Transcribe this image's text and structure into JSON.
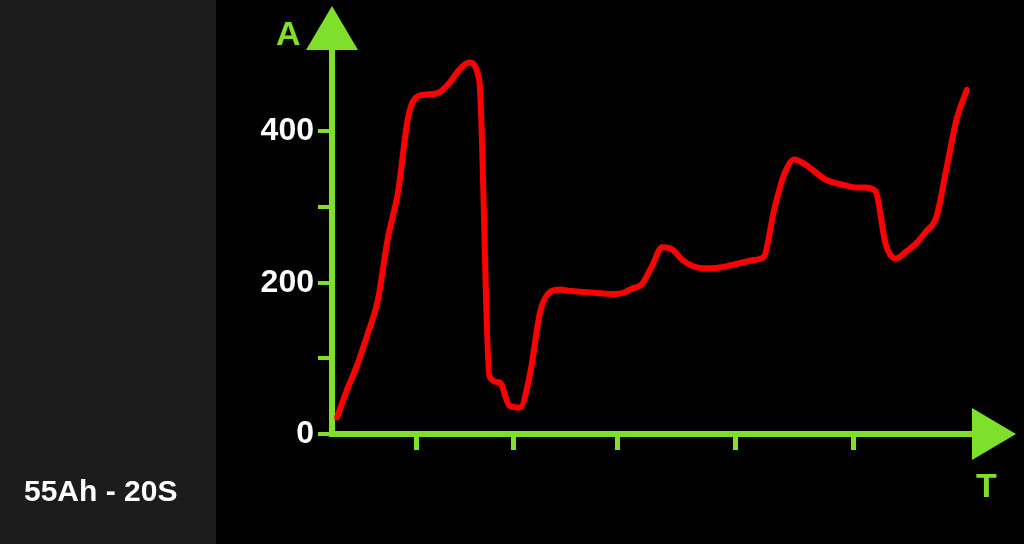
{
  "chart_data": {
    "type": "line",
    "xlabel": "T",
    "ylabel": "A",
    "annotations": [
      "55Ah - 20S"
    ],
    "categories": [
      null,
      null,
      null,
      null,
      null,
      null,
      null,
      null,
      null,
      null,
      null,
      null,
      null,
      null,
      null,
      null,
      null,
      null,
      null,
      null,
      null,
      null,
      null,
      null,
      null,
      null,
      null,
      null,
      null,
      null,
      null,
      null,
      null,
      null,
      null,
      null,
      null,
      null,
      null,
      null,
      null,
      null,
      null,
      null,
      null,
      null,
      null,
      null,
      null,
      null,
      null,
      null,
      null,
      null,
      null,
      null,
      null,
      null,
      null,
      null,
      null,
      null,
      null
    ],
    "series": [
      {
        "color": "#ff0000",
        "values": [
          22,
          59,
          92,
          132,
          176,
          259,
          320,
          419,
          447,
          449,
          451,
          463,
          481,
          491,
          467,
          76,
          68,
          37,
          35,
          80,
          162,
          188,
          191,
          189,
          188,
          187,
          186,
          185,
          186,
          192,
          198,
          222,
          247,
          244,
          230,
          222,
          219,
          219,
          221,
          224,
          227,
          230,
          234,
          295,
          343,
          363,
          357,
          347,
          337,
          332,
          329,
          326,
          326,
          321,
          251,
          232,
          241,
          252,
          268,
          287,
          352,
          417,
          455
        ]
      }
    ],
    "ylim": [
      0,
      505
    ],
    "yticks": [
      0,
      {
        "value": 100,
        "label": null
      },
      200,
      {
        "value": 300,
        "label": null
      },
      400
    ],
    "grid": false,
    "legend": false,
    "marker": "none",
    "line_style": "solid"
  }
}
